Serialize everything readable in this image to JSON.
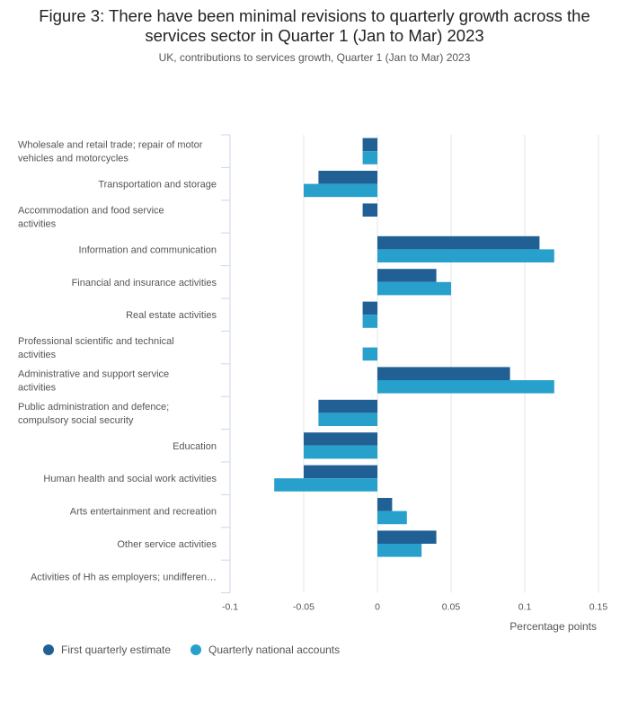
{
  "header": {
    "title": "Figure 3: There have been minimal revisions to quarterly growth across the services sector in Quarter 1 (Jan to Mar) 2023",
    "subtitle": "UK, contributions to services growth, Quarter 1 (Jan to Mar) 2023"
  },
  "colors": {
    "first_estimate": "#206095",
    "national_accounts": "#27a0cc",
    "grid": "#e5e5e5",
    "axis": "#ccd6eb"
  },
  "chart_data": {
    "type": "bar",
    "orientation": "horizontal",
    "title": "Figure 3: There have been minimal revisions to quarterly growth across the services sector in Quarter 1 (Jan to Mar) 2023",
    "subtitle": "UK, contributions to services growth, Quarter 1 (Jan to Mar) 2023",
    "xlabel": "Percentage points",
    "ylabel": "",
    "xlim": [
      -0.1,
      0.15
    ],
    "xticks": [
      "-0.1",
      "-0.05",
      "0",
      "0.05",
      "0.1",
      "0.15"
    ],
    "xtick_values": [
      -0.1,
      -0.05,
      0,
      0.05,
      0.1,
      0.15
    ],
    "grid": true,
    "legend_position": "bottom-left",
    "categories": [
      [
        "Wholesale and retail trade; repair of motor",
        "vehicles and motorcycles"
      ],
      [
        "Transportation and storage"
      ],
      [
        "Accommodation and food service",
        "activities"
      ],
      [
        "Information and communication"
      ],
      [
        "Financial and insurance activities"
      ],
      [
        "Real estate activities"
      ],
      [
        "Professional scientific and technical",
        "activities"
      ],
      [
        "Administrative and support service",
        "activities"
      ],
      [
        "Public administration and defence;",
        "compulsory social security"
      ],
      [
        "Education"
      ],
      [
        "Human health and social work activities"
      ],
      [
        "Arts entertainment and recreation"
      ],
      [
        "Other service activities"
      ],
      [
        "Activities of Hh as employers; undifferen…"
      ]
    ],
    "series": [
      {
        "name": "First quarterly estimate",
        "color": "#206095",
        "values": [
          -0.01,
          -0.04,
          -0.01,
          0.11,
          0.04,
          -0.01,
          0,
          0.09,
          -0.04,
          -0.05,
          -0.05,
          0.01,
          0.04,
          0
        ]
      },
      {
        "name": "Quarterly national accounts",
        "color": "#27a0cc",
        "values": [
          -0.01,
          -0.05,
          0,
          0.12,
          0.05,
          -0.01,
          -0.01,
          0.12,
          -0.04,
          -0.05,
          -0.07,
          0.02,
          0.03,
          0
        ]
      }
    ]
  }
}
